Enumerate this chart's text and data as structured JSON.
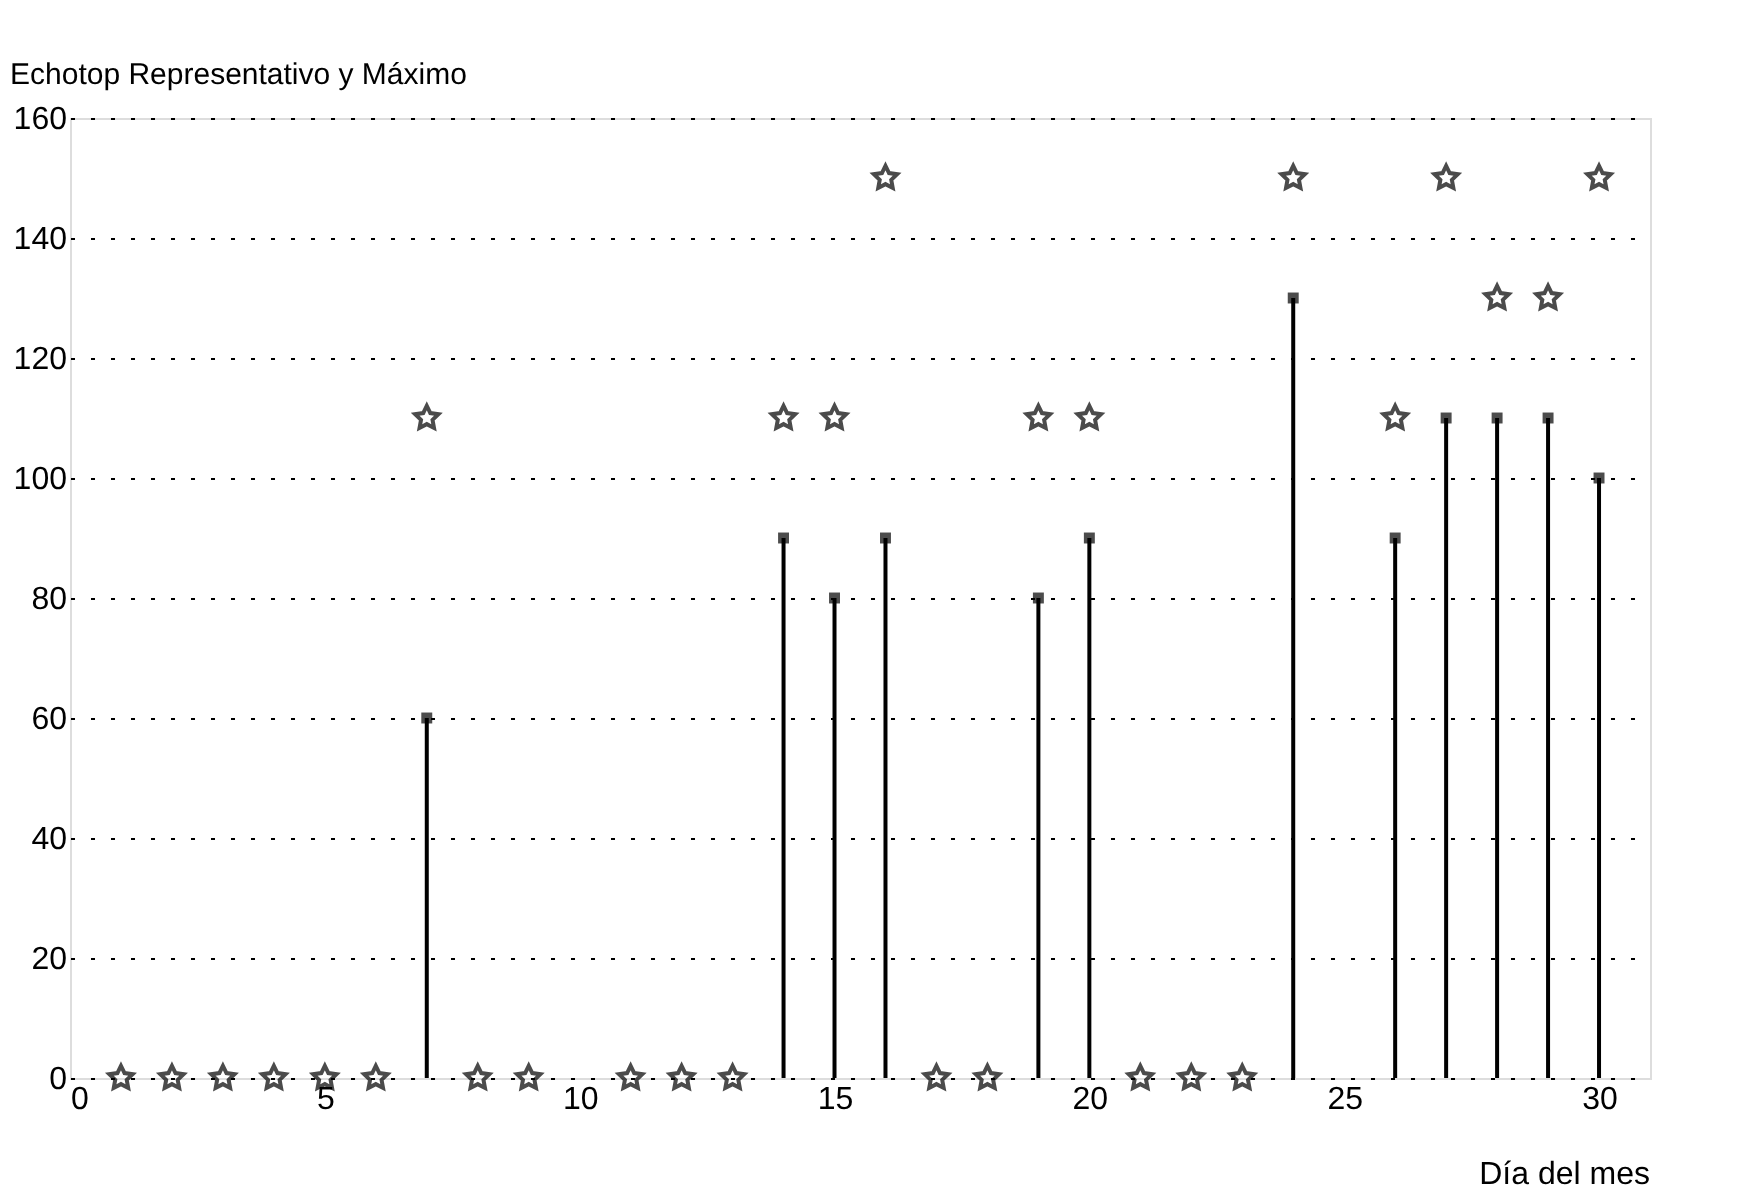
{
  "chart_data": {
    "type": "lollipop",
    "ylabel": "Echotop Representativo y Máximo",
    "xlabel": "Día del mes",
    "x": [
      1,
      2,
      3,
      4,
      5,
      6,
      7,
      8,
      9,
      10,
      11,
      12,
      13,
      14,
      15,
      16,
      17,
      18,
      19,
      20,
      21,
      22,
      23,
      24,
      25,
      26,
      27,
      28,
      29,
      30
    ],
    "series": [
      {
        "marker": "square",
        "color": "#000000",
        "values": [
          null,
          null,
          null,
          null,
          null,
          null,
          60,
          null,
          null,
          null,
          null,
          null,
          null,
          90,
          80,
          90,
          null,
          null,
          80,
          90,
          null,
          null,
          null,
          130,
          null,
          90,
          110,
          110,
          110,
          100
        ]
      },
      {
        "type": "scatter",
        "marker": "star",
        "color": "#000000",
        "values": [
          0,
          0,
          0,
          0,
          0,
          0,
          110,
          0,
          0,
          null,
          0,
          0,
          0,
          110,
          110,
          150,
          0,
          0,
          110,
          110,
          0,
          0,
          0,
          150,
          null,
          110,
          150,
          130,
          130,
          150
        ]
      }
    ],
    "xlim": [
      0,
      31
    ],
    "xticks": [
      0,
      5,
      10,
      15,
      20,
      25,
      30
    ],
    "ylim": [
      0,
      160
    ],
    "yticks": [
      0,
      20,
      40,
      60,
      80,
      100,
      120,
      140,
      160
    ],
    "grid": "y"
  }
}
